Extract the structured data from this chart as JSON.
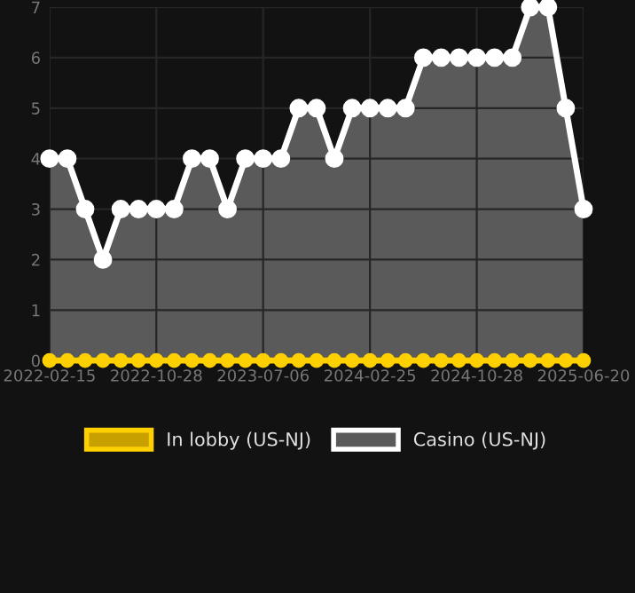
{
  "chart_data": {
    "type": "area",
    "categories": [
      "2022-02-15",
      null,
      null,
      null,
      null,
      null,
      "2022-10-28",
      null,
      null,
      null,
      null,
      null,
      "2023-07-06",
      null,
      null,
      null,
      null,
      null,
      "2024-02-25",
      null,
      null,
      null,
      null,
      null,
      "2024-10-28",
      null,
      null,
      null,
      null,
      null,
      "2025-06-20"
    ],
    "series": [
      {
        "name": "In lobby (US-NJ)",
        "color": "#ffd000",
        "type": "line",
        "values": [
          0,
          0,
          0,
          0,
          0,
          0,
          0,
          0,
          0,
          0,
          0,
          0,
          0,
          0,
          0,
          0,
          0,
          0,
          0,
          0,
          0,
          0,
          0,
          0,
          0,
          0,
          0,
          0,
          0,
          0,
          0
        ]
      },
      {
        "name": "Casino (US-NJ)",
        "color": "#ffffff",
        "values": [
          4,
          4,
          3,
          2,
          3,
          3,
          3,
          3,
          4,
          4,
          3,
          4,
          4,
          4,
          5,
          5,
          4,
          5,
          5,
          5,
          5,
          6,
          6,
          6,
          6,
          6,
          6,
          7,
          7,
          5,
          3
        ]
      }
    ],
    "ylim": [
      0,
      7
    ],
    "yticks": [
      0,
      1,
      2,
      3,
      4,
      5,
      6,
      7
    ],
    "grid": true,
    "legend": "bottom",
    "marker": "circle"
  }
}
